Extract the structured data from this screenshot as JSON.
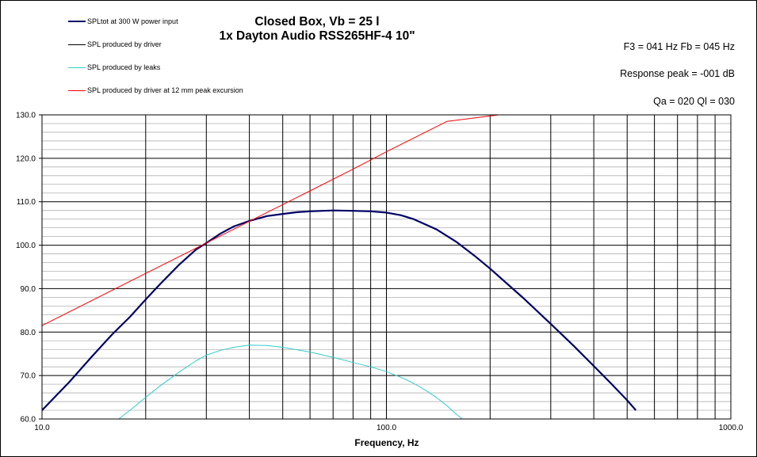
{
  "chart_data": {
    "type": "line",
    "title": "Closed Box, Vb = 25 l",
    "subtitle": "1x Dayton Audio RSS265HF-4 10\"",
    "xlabel": "Frequency, Hz",
    "ylabel": "",
    "xscale": "log",
    "xlim": [
      10,
      1000
    ],
    "ylim": [
      60,
      130
    ],
    "grid": true,
    "legend": "top-left",
    "x_ticks": [
      "10.0",
      "100.0",
      "1000.0"
    ],
    "y_ticks": [
      "60.0",
      "70.0",
      "80.0",
      "90.0",
      "100.0",
      "110.0",
      "120.0",
      "130.0"
    ],
    "series": [
      {
        "name": "SPLtot at 300 W power input",
        "color": "#000066",
        "x": [
          10,
          12,
          14,
          16,
          18,
          20,
          22,
          25,
          28,
          30,
          33,
          36,
          40,
          45,
          50,
          55,
          60,
          70,
          80,
          90,
          100,
          110,
          120,
          140,
          160,
          180,
          200,
          250,
          300,
          350,
          400,
          450,
          500,
          530
        ],
        "y": [
          62.0,
          68.5,
          74.5,
          79.5,
          83.5,
          87.5,
          91.0,
          95.5,
          99.0,
          100.5,
          102.7,
          104.3,
          105.6,
          106.7,
          107.2,
          107.6,
          107.8,
          108.0,
          107.9,
          107.8,
          107.5,
          106.9,
          106.0,
          103.6,
          100.7,
          97.6,
          94.6,
          87.8,
          81.9,
          76.8,
          72.2,
          68.1,
          64.3,
          62.0
        ]
      },
      {
        "name": "SPL produced by driver",
        "color": "#000000",
        "x": [],
        "y": []
      },
      {
        "name": "SPL produced by leaks",
        "color": "#33cccc",
        "x": [
          16.7,
          18,
          20,
          22,
          25,
          28,
          30,
          33,
          36,
          40,
          45,
          50,
          60,
          70,
          80,
          90,
          100,
          110,
          120,
          130,
          140,
          150,
          160,
          166
        ],
        "y": [
          60.0,
          62.0,
          65.0,
          67.6,
          70.8,
          73.4,
          74.7,
          75.8,
          76.5,
          77.0,
          76.9,
          76.5,
          75.4,
          74.2,
          73.0,
          72.0,
          70.9,
          69.6,
          68.2,
          66.6,
          64.9,
          63.0,
          61.0,
          60.0
        ]
      },
      {
        "name": "SPL produced by driver at 12 mm peak excursion",
        "color": "#ff0000",
        "x": [
          10,
          20,
          30,
          40,
          60,
          80,
          100,
          150,
          212
        ],
        "y": [
          81.5,
          93.5,
          100.5,
          105.5,
          112.5,
          117.5,
          121.5,
          128.5,
          130.0
        ]
      }
    ]
  },
  "params": {
    "f3_fb": "F3 = 041 Hz  Fb = 045 Hz",
    "response_peak": "Response  peak = -001 dB",
    "qa_ql": "Qa = 020  Ql = 030"
  }
}
